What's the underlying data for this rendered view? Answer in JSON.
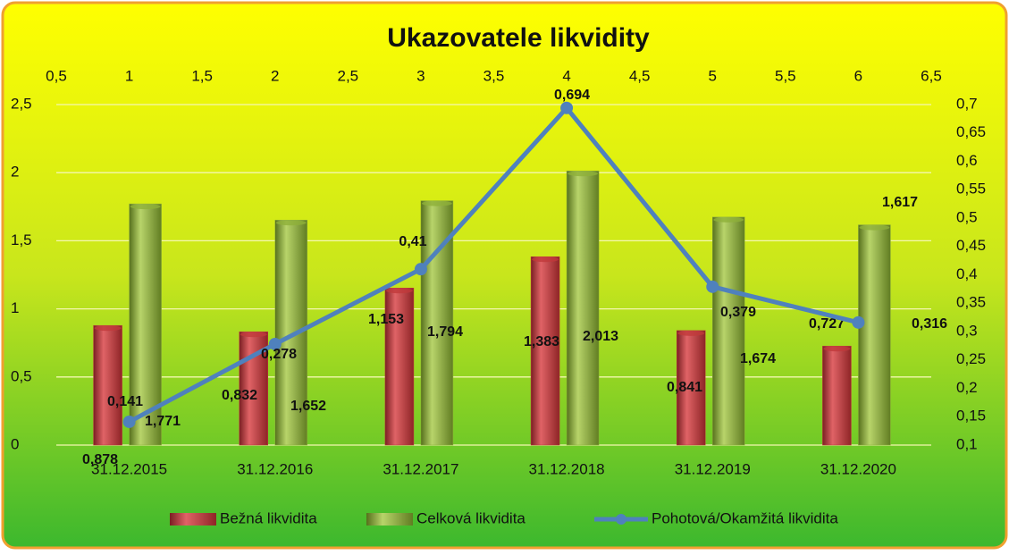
{
  "chart_data": {
    "type": "bar",
    "title": "Ukazovatele likvidity",
    "categories": [
      "31.12.2015",
      "31.12.2016",
      "31.12.2017",
      "31.12.2018",
      "31.12.2019",
      "31.12.2020"
    ],
    "series": [
      {
        "name": "Bežná likvidita",
        "type": "bar",
        "color": "#c0393b",
        "values": [
          0.878,
          0.832,
          1.153,
          1.383,
          0.841,
          0.727
        ],
        "value_labels": [
          "0,878",
          "0,832",
          "1,153",
          "1,383",
          "0,841",
          "0,727"
        ]
      },
      {
        "name": "Celková likvidita",
        "type": "bar",
        "color": "#8fb03a",
        "values": [
          1.771,
          1.652,
          1.794,
          2.013,
          1.674,
          1.617
        ],
        "value_labels": [
          "1,771",
          "1,652",
          "1,794",
          "2,013",
          "1,674",
          "1,617"
        ]
      },
      {
        "name": "Pohotová/Okamžitá likvidita",
        "type": "line",
        "axis": "y2",
        "color": "#4f81bd",
        "values": [
          0.141,
          0.278,
          0.41,
          0.694,
          0.379,
          0.316
        ],
        "value_labels": [
          "0,141",
          "0,278",
          "0,41",
          "0,694",
          "0,379",
          "0,316"
        ]
      }
    ],
    "x2lim": [
      0.5,
      6.5
    ],
    "x2ticks": [
      {
        "value": 0.5,
        "label": "0,5"
      },
      1,
      {
        "value": 1.5,
        "label": "1,5"
      },
      2,
      {
        "value": 2.5,
        "label": "2,5"
      },
      3,
      {
        "value": 3.5,
        "label": "3,5"
      },
      4,
      {
        "value": 4.5,
        "label": "4,5"
      },
      5,
      {
        "value": 5.5,
        "label": "5,5"
      },
      6,
      {
        "value": 6.5,
        "label": "6,5"
      }
    ],
    "ylim": [
      0,
      2.5
    ],
    "yticks": [
      0,
      {
        "value": 0.5,
        "label": "0,5"
      },
      1,
      {
        "value": 1.5,
        "label": "1,5"
      },
      2,
      {
        "value": 2.5,
        "label": "2,5"
      }
    ],
    "y2lim": [
      0.1,
      0.7
    ],
    "y2ticks": [
      {
        "value": 0.1,
        "label": "0,1"
      },
      {
        "value": 0.15,
        "label": "0,15"
      },
      {
        "value": 0.2,
        "label": "0,2"
      },
      {
        "value": 0.25,
        "label": "0,25"
      },
      {
        "value": 0.3,
        "label": "0,3"
      },
      {
        "value": 0.35,
        "label": "0,35"
      },
      {
        "value": 0.4,
        "label": "0,4"
      },
      {
        "value": 0.45,
        "label": "0,45"
      },
      {
        "value": 0.5,
        "label": "0,5"
      },
      {
        "value": 0.55,
        "label": "0,55"
      },
      {
        "value": 0.6,
        "label": "0,6"
      },
      {
        "value": 0.65,
        "label": "0,65"
      },
      {
        "value": 0.7,
        "label": "0,7"
      }
    ],
    "grid": true,
    "legend": "bottom"
  }
}
